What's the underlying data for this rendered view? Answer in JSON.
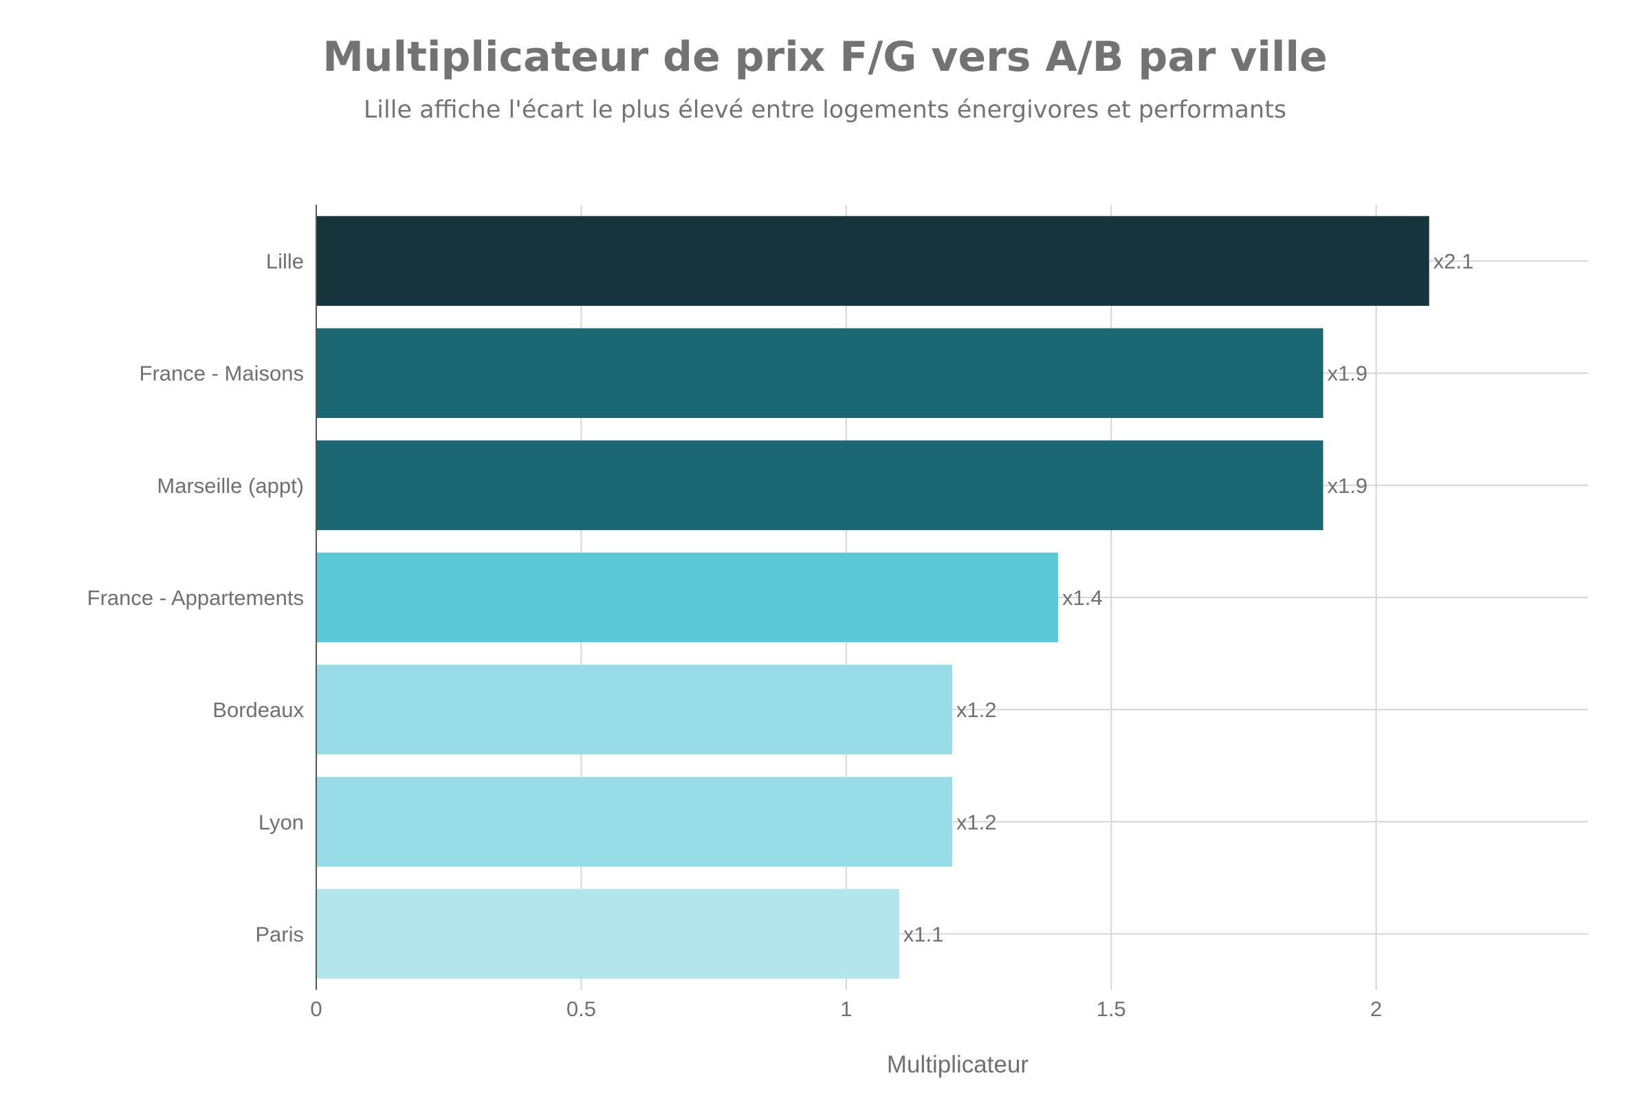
{
  "chart_data": {
    "type": "bar",
    "orientation": "horizontal",
    "title": "Multiplicateur de prix F/G vers A/B par ville",
    "subtitle": "Lille affiche l'écart le plus élevé entre logements énergivores et performants",
    "xlabel": "Multiplicateur",
    "ylabel": "",
    "categories": [
      "Lille",
      "France - Maisons",
      "Marseille (appt)",
      "France - Appartements",
      "Bordeaux",
      "Lyon",
      "Paris"
    ],
    "values": [
      2.1,
      1.9,
      1.9,
      1.4,
      1.2,
      1.2,
      1.1
    ],
    "data_labels": [
      "x2.1",
      "x1.9",
      "x1.9",
      "x1.4",
      "x1.2",
      "x1.2",
      "x1.1"
    ],
    "colors": [
      "#15343c",
      "#1b6874",
      "#1b6874",
      "#5bc9d7",
      "#97dce6",
      "#97dce6",
      "#b3e6ec"
    ],
    "xlim": [
      0,
      2.4
    ],
    "x_ticks": [
      0,
      0.5,
      1,
      1.5,
      2
    ],
    "x_tick_labels": [
      "0",
      "0.5",
      "1",
      "1.5",
      "2"
    ],
    "grid": true,
    "legend": "none"
  }
}
